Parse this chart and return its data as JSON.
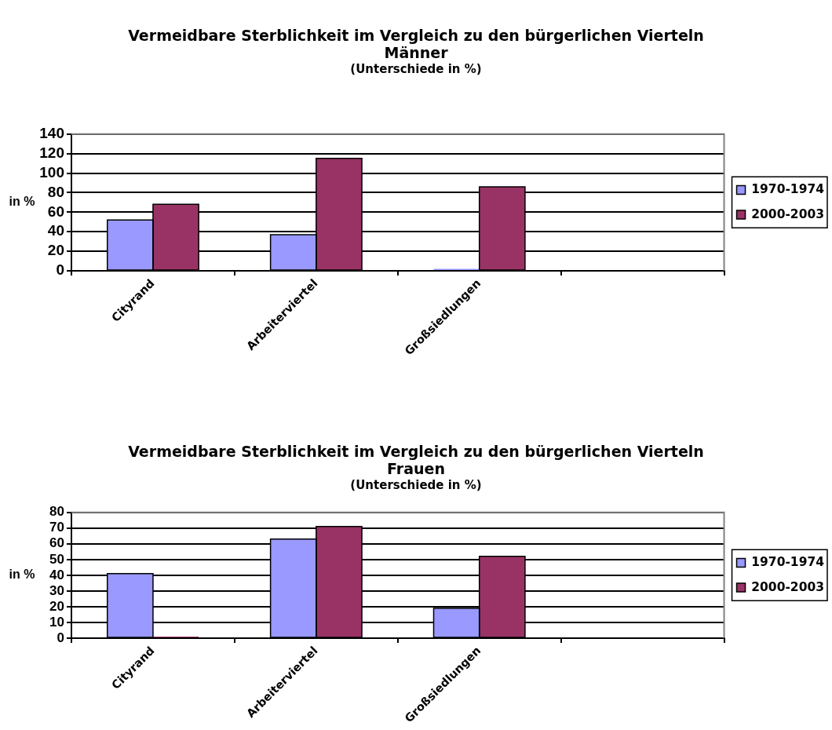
{
  "chart_data": [
    {
      "type": "bar",
      "title": "Vermeidbare Sterblichkeit im Vergleich zu den bürgerlichen Vierteln\nMänner",
      "subtitle": "(Unterschiede in %)",
      "ylabel": "in %",
      "categories": [
        "Cityrand",
        "Arbeiterviertel",
        "Großsiedlungen",
        null
      ],
      "series": [
        {
          "name": "1970-1974",
          "color": "#9999ff",
          "values": [
            52,
            37,
            2,
            null
          ]
        },
        {
          "name": "2000-2003",
          "color": "#993366",
          "values": [
            68,
            115,
            86,
            null
          ]
        }
      ],
      "ylim": [
        0,
        140
      ],
      "yticks": [
        0,
        20,
        40,
        60,
        80,
        100,
        120,
        140
      ],
      "grid": "y",
      "legend": "right"
    },
    {
      "type": "bar",
      "title": "Vermeidbare Sterblichkeit im Vergleich zu den bürgerlichen Vierteln\nFrauen",
      "subtitle": "(Unterschiede in %)",
      "ylabel": "in %",
      "categories": [
        "Cityrand",
        "Arbeiterviertel",
        "Großsiedlungen",
        null
      ],
      "series": [
        {
          "name": "1970-1974",
          "color": "#9999ff",
          "values": [
            41,
            63,
            19,
            null
          ]
        },
        {
          "name": "2000-2003",
          "color": "#993366",
          "values": [
            1,
            71,
            52,
            null
          ]
        }
      ],
      "ylim": [
        0,
        80
      ],
      "yticks": [
        0,
        10,
        20,
        30,
        40,
        50,
        60,
        70,
        80
      ],
      "grid": "y",
      "legend": "right"
    }
  ]
}
